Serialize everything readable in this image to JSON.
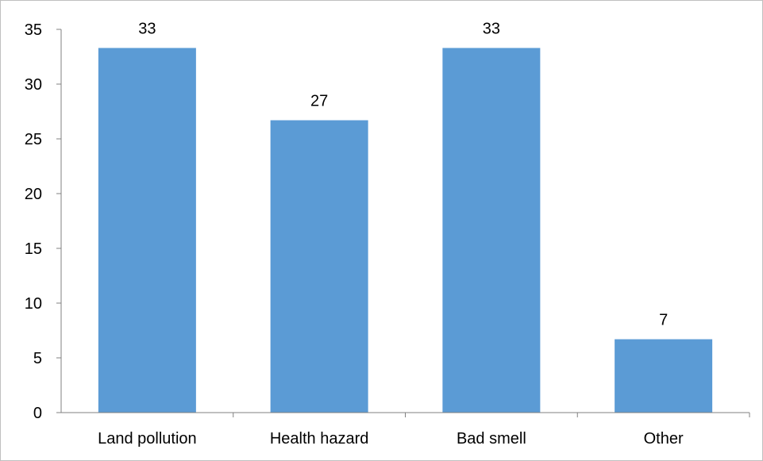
{
  "chart_data": {
    "type": "bar",
    "title": "",
    "xlabel": "",
    "ylabel": "",
    "categories": [
      "Land pollution",
      "Health hazard",
      "Bad smell",
      "Other"
    ],
    "values": [
      33.3,
      26.7,
      33.3,
      6.7
    ],
    "data_labels": [
      "33",
      "27",
      "33",
      "7"
    ],
    "ylim": [
      0,
      35
    ],
    "yticks": [
      0,
      5,
      10,
      15,
      20,
      25,
      30,
      35
    ],
    "grid": false,
    "legend": "none",
    "bar_color": "#5b9bd5",
    "axis_color": "#808080"
  }
}
